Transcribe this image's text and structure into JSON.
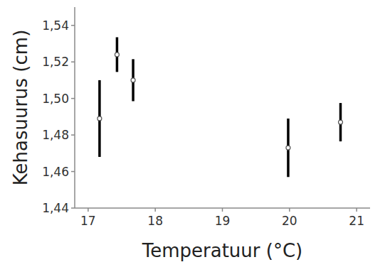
{
  "chart_data": {
    "type": "scatter",
    "x_label": "Temperatuur (°C)",
    "y_label": "Kehasuurus (cm)",
    "x": [
      17.17,
      17.43,
      17.67,
      19.98,
      20.76
    ],
    "values": [
      1.489,
      1.524,
      1.51,
      1.473,
      1.487
    ],
    "errors": [
      0.021,
      0.0095,
      0.0115,
      0.016,
      0.0105
    ],
    "color": "#000000",
    "marker": "circle",
    "xlim": [
      16.8,
      21.2
    ],
    "ylim": [
      1.44,
      1.55
    ],
    "xticks": [
      17,
      18,
      19,
      20,
      21
    ],
    "yticks": [
      {
        "value": 1.44,
        "label": "1,44"
      },
      {
        "value": 1.46,
        "label": "1,46"
      },
      {
        "value": 1.48,
        "label": "1,48"
      },
      {
        "value": 1.5,
        "label": "1,50"
      },
      {
        "value": 1.52,
        "label": "1,52"
      },
      {
        "value": 1.54,
        "label": "1,54"
      }
    ],
    "grid": false
  }
}
